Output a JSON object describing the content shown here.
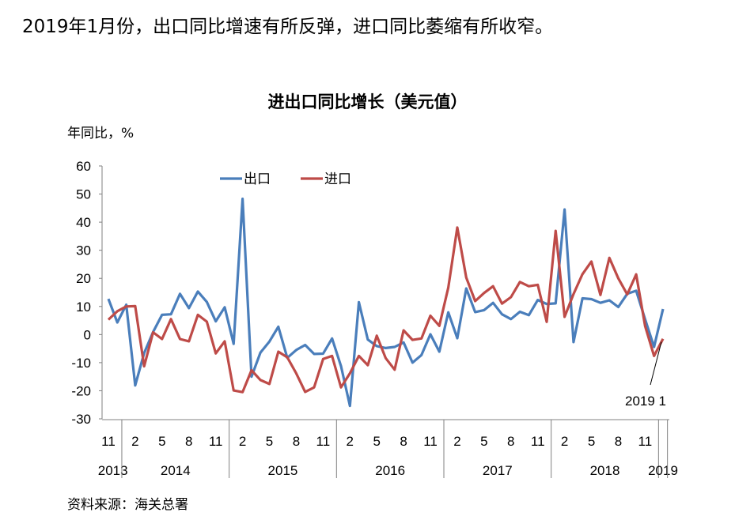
{
  "headline": "2019年1月份，出口同比增速有所反弹，进口同比萎缩有所收窄。",
  "source": "资料来源：海关总署",
  "colors": {
    "export": "#4a7ebb",
    "import": "#be4b48",
    "axis": "#808080"
  },
  "chart_data": {
    "type": "line",
    "title": "进出口同比增长（美元值）",
    "ylabel": "年同比，%",
    "ylim": [
      -30,
      60
    ],
    "yticks": [
      -30,
      -20,
      -10,
      0,
      10,
      20,
      30,
      40,
      50,
      60
    ],
    "grid": false,
    "legend_position": "top-left",
    "x": [
      "2013-11",
      "2013-12",
      "2014-01",
      "2014-02",
      "2014-03",
      "2014-04",
      "2014-05",
      "2014-06",
      "2014-07",
      "2014-08",
      "2014-09",
      "2014-10",
      "2014-11",
      "2014-12",
      "2015-01",
      "2015-02",
      "2015-03",
      "2015-04",
      "2015-05",
      "2015-06",
      "2015-07",
      "2015-08",
      "2015-09",
      "2015-10",
      "2015-11",
      "2015-12",
      "2016-01",
      "2016-02",
      "2016-03",
      "2016-04",
      "2016-05",
      "2016-06",
      "2016-07",
      "2016-08",
      "2016-09",
      "2016-10",
      "2016-11",
      "2016-12",
      "2017-01",
      "2017-02",
      "2017-03",
      "2017-04",
      "2017-05",
      "2017-06",
      "2017-07",
      "2017-08",
      "2017-09",
      "2017-10",
      "2017-11",
      "2017-12",
      "2018-01",
      "2018-02",
      "2018-03",
      "2018-04",
      "2018-05",
      "2018-06",
      "2018-07",
      "2018-08",
      "2018-09",
      "2018-10",
      "2018-11",
      "2018-12",
      "2019-01"
    ],
    "month_tick_labels": [
      {
        "x": "2013-11",
        "label": "11"
      },
      {
        "x": "2014-02",
        "label": "2"
      },
      {
        "x": "2014-05",
        "label": "5"
      },
      {
        "x": "2014-08",
        "label": "8"
      },
      {
        "x": "2014-11",
        "label": "11"
      },
      {
        "x": "2015-02",
        "label": "2"
      },
      {
        "x": "2015-05",
        "label": "5"
      },
      {
        "x": "2015-08",
        "label": "8"
      },
      {
        "x": "2015-11",
        "label": "11"
      },
      {
        "x": "2016-02",
        "label": "2"
      },
      {
        "x": "2016-05",
        "label": "5"
      },
      {
        "x": "2016-08",
        "label": "8"
      },
      {
        "x": "2016-11",
        "label": "11"
      },
      {
        "x": "2017-02",
        "label": "2"
      },
      {
        "x": "2017-05",
        "label": "5"
      },
      {
        "x": "2017-08",
        "label": "8"
      },
      {
        "x": "2017-11",
        "label": "11"
      },
      {
        "x": "2018-02",
        "label": "2"
      },
      {
        "x": "2018-05",
        "label": "5"
      },
      {
        "x": "2018-08",
        "label": "8"
      },
      {
        "x": "2018-11",
        "label": "11"
      }
    ],
    "year_groups": [
      {
        "label": "2013",
        "from": "2013-11",
        "to": "2013-12"
      },
      {
        "label": "2014",
        "from": "2014-01",
        "to": "2014-12"
      },
      {
        "label": "2015",
        "from": "2015-01",
        "to": "2015-12"
      },
      {
        "label": "2016",
        "from": "2016-01",
        "to": "2016-12"
      },
      {
        "label": "2017",
        "from": "2017-01",
        "to": "2017-12"
      },
      {
        "label": "2018",
        "from": "2018-01",
        "to": "2018-12"
      },
      {
        "label": "2019",
        "from": "2019-01",
        "to": "2019-01"
      }
    ],
    "series": [
      {
        "name": "出口",
        "color_key": "export",
        "values": [
          12.7,
          4.3,
          10.6,
          -18.1,
          -6.6,
          0.9,
          7.0,
          7.2,
          14.5,
          9.4,
          15.3,
          11.6,
          4.7,
          9.7,
          -3.3,
          48.3,
          -15.0,
          -6.4,
          -2.5,
          2.8,
          -8.3,
          -5.5,
          -3.7,
          -6.9,
          -6.8,
          -1.4,
          -11.2,
          -25.4,
          11.5,
          -1.8,
          -4.1,
          -4.8,
          -4.4,
          -2.8,
          -10.0,
          -7.3,
          0.1,
          -6.1,
          7.9,
          -1.3,
          16.4,
          8.0,
          8.7,
          11.3,
          7.2,
          5.5,
          8.1,
          6.9,
          12.3,
          10.9,
          11.1,
          44.5,
          -2.7,
          12.9,
          12.6,
          11.3,
          12.2,
          9.8,
          14.5,
          15.6,
          5.4,
          -4.4,
          9.1
        ]
      },
      {
        "name": "进口",
        "color_key": "import",
        "values": [
          5.3,
          8.3,
          10.0,
          10.1,
          -11.3,
          0.8,
          -1.6,
          5.5,
          -1.6,
          -2.4,
          7.0,
          4.6,
          -6.7,
          -2.4,
          -19.9,
          -20.5,
          -12.7,
          -16.2,
          -17.6,
          -6.1,
          -8.1,
          -13.8,
          -20.4,
          -18.8,
          -8.7,
          -7.6,
          -18.8,
          -13.8,
          -7.6,
          -10.9,
          -0.4,
          -8.4,
          -12.5,
          1.5,
          -1.9,
          -1.4,
          6.7,
          3.1,
          16.7,
          38.1,
          20.3,
          11.9,
          14.8,
          17.2,
          11.0,
          13.3,
          18.7,
          17.2,
          17.7,
          4.5,
          36.9,
          6.3,
          14.4,
          21.5,
          26.0,
          14.1,
          27.3,
          20.0,
          14.3,
          21.4,
          3.0,
          -7.6,
          -1.5
        ]
      }
    ],
    "annotations": [
      {
        "text": "2019 1",
        "x": "2019-01"
      }
    ]
  }
}
